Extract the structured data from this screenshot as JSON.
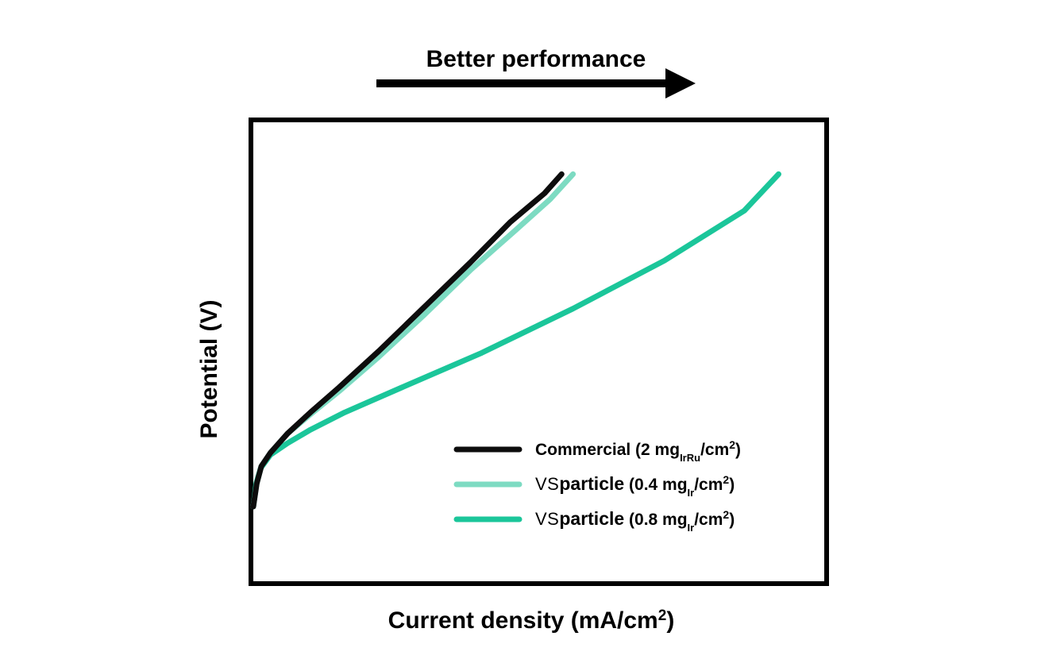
{
  "chart_data": {
    "type": "line",
    "title": "",
    "annotation": "Better performance",
    "xlabel": "Current density (mA/cm",
    "xlabel_sup": "2",
    "xlabel_tail": ")",
    "ylabel": "Potential (V)",
    "xlim": [
      0,
      100
    ],
    "ylim": [
      0,
      100
    ],
    "ticks_shown": false,
    "grid": false,
    "legend_position": "bottom-right",
    "series": [
      {
        "name": "Commercial (2 mg_IrRu/cm2)",
        "legend": {
          "brand_prefix": "",
          "brand_word": "",
          "text": "Commercial (2 mg",
          "sub": "IrRu",
          "mid": "/cm",
          "sup": "2",
          "tail": ")"
        },
        "color": "#0d0d0d",
        "x": [
          0,
          0.6,
          1.4,
          3.0,
          6.0,
          10.0,
          15.0,
          22.0,
          30.0,
          38.0,
          45.0,
          51.0,
          54.0
        ],
        "y": [
          0,
          6.0,
          10.5,
          14.0,
          19.0,
          24.5,
          31.0,
          40.5,
          52.0,
          63.5,
          74.0,
          81.5,
          86.5
        ]
      },
      {
        "name": "VSParticle (0.4 mg_Ir/cm2)",
        "legend": {
          "brand_prefix": "VS",
          "brand_word": "particle",
          "text": " (0.4 mg",
          "sub": "Ir",
          "mid": "/cm",
          "sup": "2",
          "tail": ")"
        },
        "color": "#7ddbc2",
        "x": [
          0,
          0.6,
          1.4,
          3.0,
          6.0,
          10.0,
          15.0,
          22.0,
          30.0,
          38.0,
          46.0,
          52.0,
          56.0
        ],
        "y": [
          0,
          6.0,
          10.5,
          14.0,
          19.0,
          24.0,
          30.0,
          39.0,
          50.0,
          61.5,
          72.0,
          80.0,
          86.5
        ]
      },
      {
        "name": "VSParticle (0.8 mg_Ir/cm2)",
        "legend": {
          "brand_prefix": "VS",
          "brand_word": "particle",
          "text": " (0.8 mg",
          "sub": "Ir",
          "mid": "/cm",
          "sup": "2",
          "tail": ")"
        },
        "color": "#1bc69a",
        "x": [
          0,
          0.5,
          1.3,
          3.0,
          6.0,
          10.0,
          16.0,
          26.0,
          40.0,
          56.0,
          72.0,
          86.0,
          92.0
        ],
        "y": [
          0,
          6.0,
          10.0,
          13.5,
          16.5,
          20.0,
          24.5,
          31.0,
          40.0,
          51.5,
          64.0,
          77.0,
          86.5
        ]
      }
    ]
  }
}
